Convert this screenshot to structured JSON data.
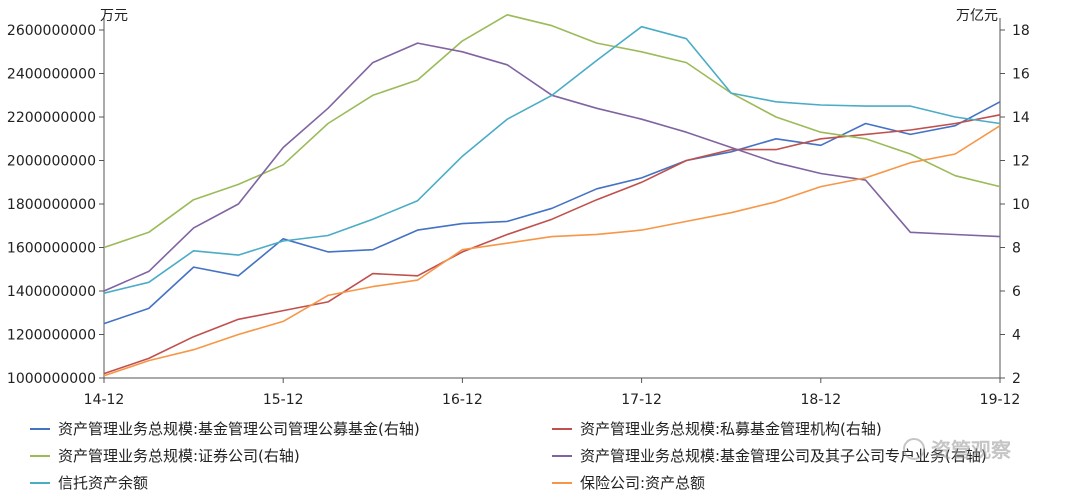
{
  "chart_data": {
    "type": "line",
    "left_unit": "万元",
    "right_unit": "万亿元",
    "x_categories": [
      "14-12",
      "15-12",
      "16-12",
      "17-12",
      "18-12",
      "19-12"
    ],
    "left_ylim": [
      1000000000,
      2600000000
    ],
    "left_ticks": [
      "1000000000",
      "1200000000",
      "1400000000",
      "1600000000",
      "1800000000",
      "2000000000",
      "2200000000",
      "2400000000",
      "2600000000"
    ],
    "right_ylim": [
      2,
      18
    ],
    "right_ticks": [
      "2",
      "4",
      "6",
      "8",
      "10",
      "12",
      "14",
      "16",
      "18"
    ],
    "series": [
      {
        "name": "资产管理业务总规模:基金管理公司管理公募基金(右轴)",
        "color": "#4472c4",
        "axis": "right",
        "points": [
          [
            0,
            4.5
          ],
          [
            2,
            5.2
          ],
          [
            4,
            7.1
          ],
          [
            6,
            6.7
          ],
          [
            8,
            8.4
          ],
          [
            10,
            7.8
          ],
          [
            12,
            7.9
          ],
          [
            14,
            8.8
          ],
          [
            16,
            9.1
          ],
          [
            18,
            9.2
          ],
          [
            20,
            9.8
          ],
          [
            22,
            10.7
          ],
          [
            24,
            11.2
          ],
          [
            26,
            12.0
          ],
          [
            28,
            12.4
          ],
          [
            30,
            13.0
          ],
          [
            32,
            12.7
          ],
          [
            34,
            13.7
          ],
          [
            36,
            13.2
          ],
          [
            38,
            13.6
          ],
          [
            40,
            14.7
          ]
        ]
      },
      {
        "name": "资产管理业务总规模:私募基金管理机构(右轴)",
        "color": "#c0504d",
        "axis": "right",
        "points": [
          [
            0,
            2.2
          ],
          [
            2,
            2.9
          ],
          [
            4,
            3.9
          ],
          [
            6,
            4.7
          ],
          [
            8,
            5.1
          ],
          [
            10,
            5.5
          ],
          [
            12,
            6.8
          ],
          [
            14,
            6.7
          ],
          [
            16,
            7.8
          ],
          [
            18,
            8.6
          ],
          [
            20,
            9.3
          ],
          [
            22,
            10.2
          ],
          [
            24,
            11.0
          ],
          [
            26,
            12.0
          ],
          [
            28,
            12.5
          ],
          [
            30,
            12.5
          ],
          [
            32,
            13.0
          ],
          [
            34,
            13.2
          ],
          [
            36,
            13.4
          ],
          [
            38,
            13.7
          ],
          [
            40,
            14.1
          ]
        ]
      },
      {
        "name": "资产管理业务总规模:证券公司(右轴)",
        "color": "#9bbb59",
        "axis": "right",
        "points": [
          [
            0,
            8.0
          ],
          [
            2,
            8.7
          ],
          [
            4,
            10.2
          ],
          [
            6,
            10.9
          ],
          [
            8,
            11.8
          ],
          [
            10,
            13.7
          ],
          [
            12,
            15.0
          ],
          [
            14,
            15.7
          ],
          [
            16,
            17.5
          ],
          [
            18,
            18.7
          ],
          [
            20,
            18.2
          ],
          [
            22,
            17.4
          ],
          [
            24,
            17.0
          ],
          [
            26,
            16.5
          ],
          [
            28,
            15.1
          ],
          [
            30,
            14.0
          ],
          [
            32,
            13.3
          ],
          [
            34,
            13.0
          ],
          [
            36,
            12.3
          ],
          [
            38,
            11.3
          ],
          [
            40,
            10.8
          ]
        ]
      },
      {
        "name": "资产管理业务总规模:基金管理公司及其子公司专户业务(右轴)",
        "color": "#8064a2",
        "axis": "right",
        "points": [
          [
            0,
            6.0
          ],
          [
            2,
            6.9
          ],
          [
            4,
            8.9
          ],
          [
            6,
            10.0
          ],
          [
            8,
            12.6
          ],
          [
            10,
            14.4
          ],
          [
            12,
            16.5
          ],
          [
            14,
            17.4
          ],
          [
            16,
            17.0
          ],
          [
            18,
            16.4
          ],
          [
            20,
            15.0
          ],
          [
            22,
            14.4
          ],
          [
            24,
            13.9
          ],
          [
            26,
            13.3
          ],
          [
            28,
            12.6
          ],
          [
            30,
            11.9
          ],
          [
            32,
            11.4
          ],
          [
            34,
            11.1
          ],
          [
            36,
            8.7
          ],
          [
            38,
            8.6
          ],
          [
            40,
            8.5
          ]
        ]
      },
      {
        "name": "信托资产余额",
        "color": "#4bacc6",
        "axis": "left",
        "points": [
          [
            0,
            1390000000
          ],
          [
            2,
            1440000000
          ],
          [
            4,
            1585000000
          ],
          [
            6,
            1565000000
          ],
          [
            8,
            1630000000
          ],
          [
            10,
            1655000000
          ],
          [
            12,
            1730000000
          ],
          [
            14,
            1815000000
          ],
          [
            16,
            2020000000
          ],
          [
            18,
            2190000000
          ],
          [
            20,
            2300000000
          ],
          [
            22,
            2460000000
          ],
          [
            24,
            2615000000
          ],
          [
            26,
            2560000000
          ],
          [
            28,
            2310000000
          ],
          [
            30,
            2270000000
          ],
          [
            32,
            2255000000
          ],
          [
            34,
            2250000000
          ],
          [
            36,
            2250000000
          ],
          [
            38,
            2200000000
          ],
          [
            40,
            2170000000
          ]
        ]
      },
      {
        "name": "保险公司:资产总额",
        "color": "#f79646",
        "axis": "left",
        "points": [
          [
            0,
            1010000000
          ],
          [
            2,
            1080000000
          ],
          [
            4,
            1130000000
          ],
          [
            6,
            1200000000
          ],
          [
            8,
            1260000000
          ],
          [
            10,
            1380000000
          ],
          [
            12,
            1420000000
          ],
          [
            14,
            1450000000
          ],
          [
            16,
            1590000000
          ],
          [
            18,
            1620000000
          ],
          [
            20,
            1650000000
          ],
          [
            22,
            1660000000
          ],
          [
            24,
            1680000000
          ],
          [
            26,
            1720000000
          ],
          [
            28,
            1760000000
          ],
          [
            30,
            1810000000
          ],
          [
            32,
            1880000000
          ],
          [
            34,
            1920000000
          ],
          [
            36,
            1990000000
          ],
          [
            38,
            2030000000
          ],
          [
            40,
            2160000000
          ]
        ]
      }
    ],
    "legend_placement": "bottom",
    "grid": false
  },
  "watermark": "资管观察"
}
